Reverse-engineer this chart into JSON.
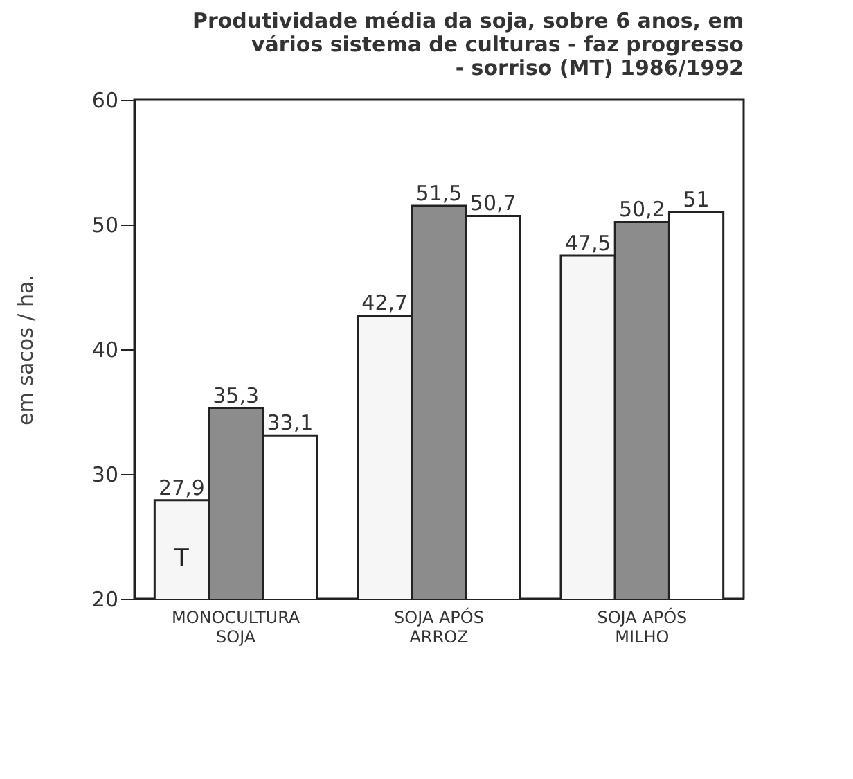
{
  "chart_data": {
    "type": "bar",
    "title": "Produtividade média da soja, sobre 6 anos, em\nvários sistema de culturas - faz progresso\n- sorriso (MT) 1986/1992",
    "ylabel": "em sacos / ha.",
    "categories": [
      "MONOCULTURA\nSOJA",
      "SOJA APÓS\nARROZ",
      "SOJA APÓS\nMILHO"
    ],
    "series": [
      {
        "color": "#f6f6f6",
        "values": [
          27.9,
          42.7,
          47.5
        ],
        "value_labels": [
          "27,9",
          "42,7",
          "47,5"
        ]
      },
      {
        "color": "#8c8c8c",
        "values": [
          35.3,
          51.5,
          50.2
        ],
        "value_labels": [
          "35,3",
          "51,5",
          "50,2"
        ]
      },
      {
        "color": "#ffffff",
        "values": [
          33.1,
          50.7,
          51
        ],
        "value_labels": [
          "33,1",
          "50,7",
          "51"
        ]
      }
    ],
    "annotations": [
      "T"
    ],
    "ylim": [
      20,
      60
    ],
    "yticks": [
      20,
      30,
      40,
      50,
      60
    ],
    "grid": false,
    "legend": false
  }
}
